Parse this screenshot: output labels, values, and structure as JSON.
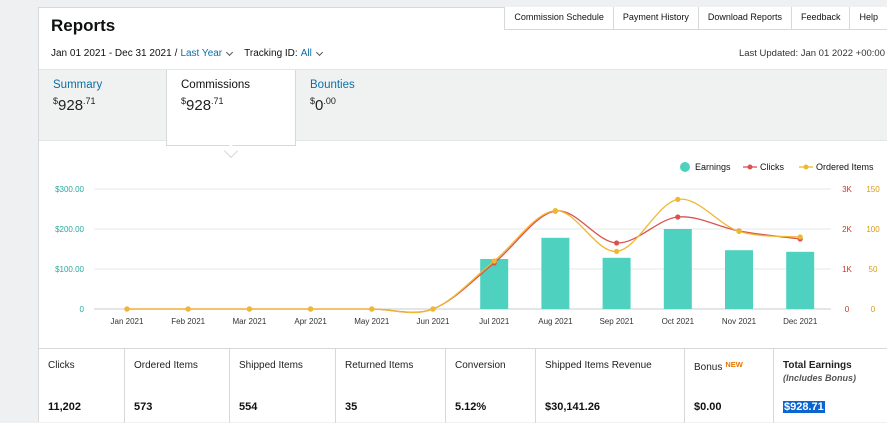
{
  "header": {
    "title": "Reports",
    "tabs": [
      "Commission Schedule",
      "Payment History",
      "Download Reports",
      "Feedback",
      "Help"
    ]
  },
  "filters": {
    "date_range": "Jan 01 2021 - Dec 31 2021",
    "separator": "/",
    "preset": "Last Year",
    "tracking_label": "Tracking ID:",
    "tracking_value": "All"
  },
  "last_updated": "Last Updated: Jan 01 2022 +00:00",
  "summary_tabs": [
    {
      "label": "Summary",
      "currency": "$",
      "whole": "928",
      "cents": ".71"
    },
    {
      "label": "Commissions",
      "currency": "$",
      "whole": "928",
      "cents": ".71"
    },
    {
      "label": "Bounties",
      "currency": "$",
      "whole": "0",
      "cents": ".00"
    }
  ],
  "colors": {
    "earnings": "#4fd1c0",
    "clicks": "#d9534f",
    "ordered": "#f0b731",
    "link": "#0a6fa8"
  },
  "chart_data": {
    "type": "bar",
    "categories": [
      "Jan 2021",
      "Feb 2021",
      "Mar 2021",
      "Apr 2021",
      "May 2021",
      "Jun 2021",
      "Jul 2021",
      "Aug 2021",
      "Sep 2021",
      "Oct 2021",
      "Nov 2021",
      "Dec 2021"
    ],
    "legend": [
      "Earnings",
      "Clicks",
      "Ordered Items"
    ],
    "series": [
      {
        "name": "Earnings",
        "type": "bar",
        "axis": "left",
        "values": [
          0,
          0,
          0,
          0,
          0,
          0,
          125,
          178,
          128,
          200,
          147,
          143
        ]
      },
      {
        "name": "Clicks",
        "type": "line",
        "axis": "right1",
        "values": [
          0,
          0,
          0,
          0,
          0,
          0,
          1150,
          2450,
          1650,
          2300,
          1950,
          1750
        ]
      },
      {
        "name": "Ordered Items",
        "type": "line",
        "axis": "right2",
        "values": [
          0,
          0,
          0,
          0,
          0,
          0,
          60,
          123,
          72,
          137,
          97,
          90
        ]
      }
    ],
    "left_axis": {
      "ticks": [
        "0",
        "$100.00",
        "$200.00",
        "$300.00"
      ],
      "ylim": [
        0,
        300
      ]
    },
    "right1_axis": {
      "ticks": [
        "0",
        "1K",
        "2K",
        "3K"
      ],
      "ylim": [
        0,
        3000
      ]
    },
    "right2_axis": {
      "ticks": [
        "0",
        "50",
        "100",
        "150"
      ],
      "ylim": [
        0,
        150
      ]
    },
    "legend_position": "top-right"
  },
  "stats": [
    {
      "label": "Clicks",
      "value": "11,202"
    },
    {
      "label": "Ordered Items",
      "value": "573"
    },
    {
      "label": "Shipped Items",
      "value": "554"
    },
    {
      "label": "Returned Items",
      "value": "35"
    },
    {
      "label": "Conversion",
      "value": "5.12%"
    },
    {
      "label": "Shipped Items Revenue",
      "value": "$30,141.26"
    },
    {
      "label": "Bonus",
      "badge": "NEW",
      "value": "$0.00"
    },
    {
      "label": "Total Earnings",
      "sub": "(Includes Bonus)",
      "value": "$928.71"
    }
  ]
}
